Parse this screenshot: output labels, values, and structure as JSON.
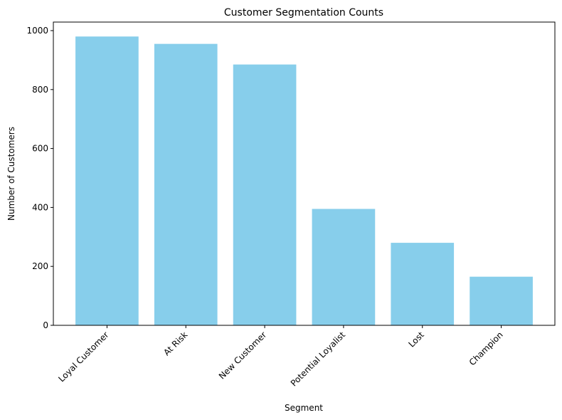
{
  "chart_data": {
    "type": "bar",
    "title": "Customer Segmentation Counts",
    "xlabel": "Segment",
    "ylabel": "Number of Customers",
    "categories": [
      "Loyal Customer",
      "At Risk",
      "New Customer",
      "Potential Loyalist",
      "Lost",
      "Champion"
    ],
    "values": [
      980,
      955,
      885,
      395,
      280,
      165
    ],
    "ylim": [
      0,
      1029
    ],
    "yticks": [
      0,
      200,
      400,
      600,
      800,
      1000
    ],
    "grid": false,
    "bar_color": "#87ceeb"
  }
}
